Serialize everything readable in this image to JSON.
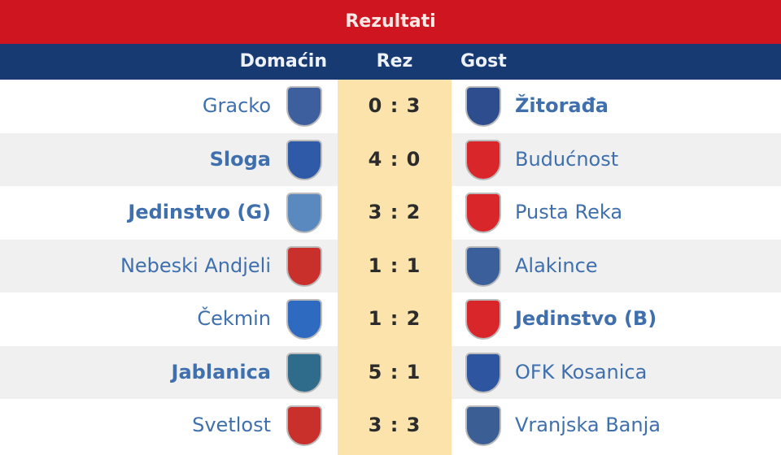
{
  "title": "Rezultati",
  "headers": {
    "home": "Domaćin",
    "score": "Rez",
    "away": "Gost"
  },
  "matches": [
    {
      "home": "Gracko",
      "score": "0 : 3",
      "away": "Žitorađa",
      "winner": "away",
      "home_logo_color": "#3d5f9e",
      "away_logo_color": "#2d4d8f"
    },
    {
      "home": "Sloga",
      "score": "4 : 0",
      "away": "Budućnost",
      "winner": "home",
      "home_logo_color": "#2e5aa8",
      "away_logo_color": "#d8262b"
    },
    {
      "home": "Jedinstvo (G)",
      "score": "3 : 2",
      "away": "Pusta Reka",
      "winner": "home",
      "home_logo_color": "#5a89c0",
      "away_logo_color": "#d8262b"
    },
    {
      "home": "Nebeski Andjeli",
      "score": "1 : 1",
      "away": "Alakince",
      "winner": "draw",
      "home_logo_color": "#c9302c",
      "away_logo_color": "#3a5f9a"
    },
    {
      "home": "Čekmin",
      "score": "1 : 2",
      "away": "Jedinstvo (B)",
      "winner": "away",
      "home_logo_color": "#2e6bc0",
      "away_logo_color": "#d8262b"
    },
    {
      "home": "Jablanica",
      "score": "5 : 1",
      "away": "OFK Kosanica",
      "winner": "home",
      "home_logo_color": "#2f6b8a",
      "away_logo_color": "#2d55a0"
    },
    {
      "home": "Svetlost",
      "score": "3 : 3",
      "away": "Vranjska Banja",
      "winner": "draw",
      "home_logo_color": "#c9302c",
      "away_logo_color": "#3b5f95"
    }
  ]
}
